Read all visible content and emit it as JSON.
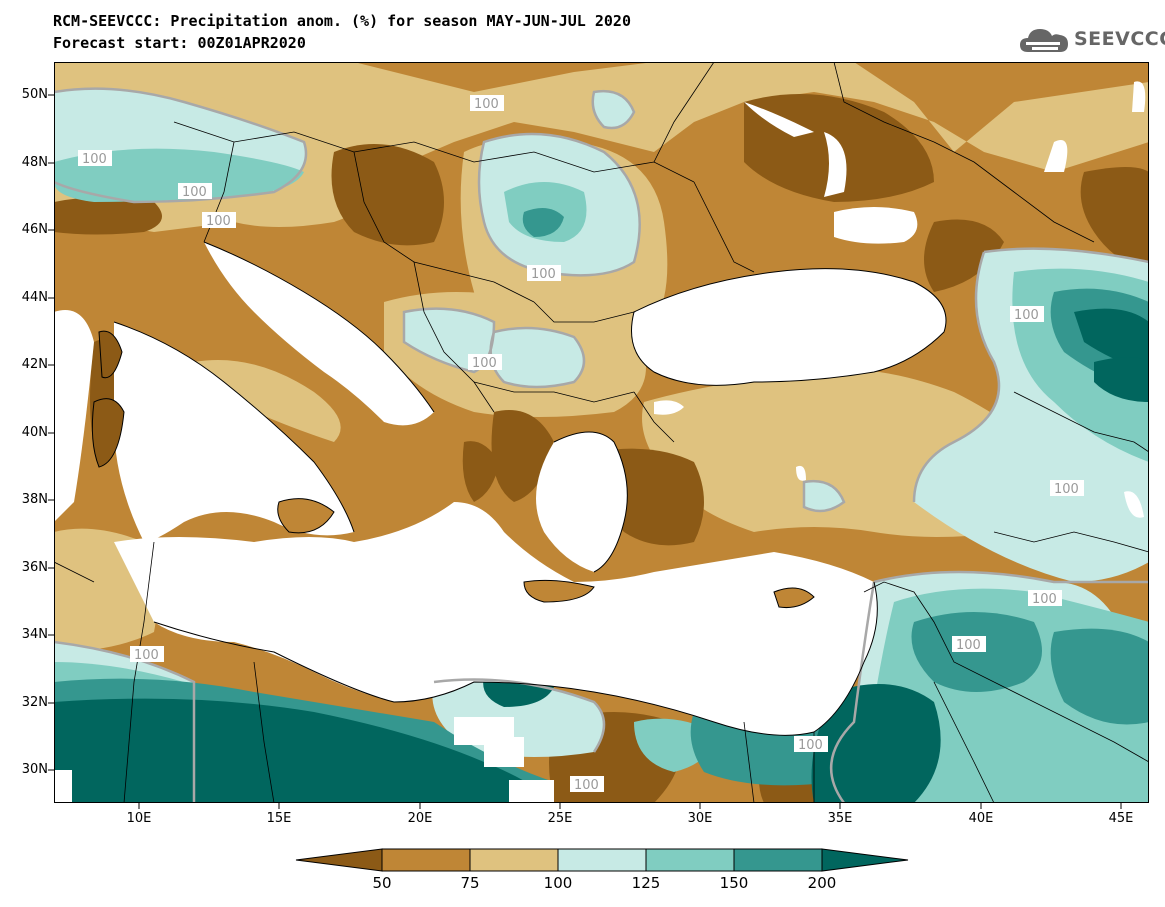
{
  "title": {
    "line1": "RCM-SEEVCCC: Precipitation anom. (%) for season MAY-JUN-JUL 2020",
    "line2": "Forecast start: 00Z01APR2020"
  },
  "logo": {
    "text": "SEEVCCC",
    "icon": "cloud-icon",
    "color": "#666666"
  },
  "map": {
    "projection": "lat-lon",
    "lon_range": [
      7,
      46
    ],
    "lat_range": [
      29,
      51
    ],
    "lat_ticks": [
      "50N",
      "48N",
      "46N",
      "44N",
      "42N",
      "40N",
      "38N",
      "36N",
      "34N",
      "32N",
      "30N"
    ],
    "lon_ticks": [
      "10E",
      "15E",
      "20E",
      "25E",
      "30E",
      "35E",
      "40E",
      "45E"
    ],
    "contour_labels": [
      "100",
      "100",
      "100",
      "100",
      "100",
      "100",
      "100",
      "100",
      "100",
      "100",
      "100",
      "100",
      "100"
    ],
    "colors": {
      "below50": "#8c5a16",
      "50_75": "#bf8636",
      "75_100": "#dfc27f",
      "100_125": "#c7eae5",
      "125_150": "#80cdc1",
      "150_200": "#35978f",
      "above200": "#01665e",
      "sea": "#ffffff",
      "contour": "#a8a8a8"
    }
  },
  "colorbar": {
    "levels": [
      "50",
      "75",
      "100",
      "125",
      "150",
      "200"
    ],
    "colors": [
      "#8c5a16",
      "#bf8636",
      "#dfc27f",
      "#c7eae5",
      "#80cdc1",
      "#35978f",
      "#01665e"
    ]
  }
}
